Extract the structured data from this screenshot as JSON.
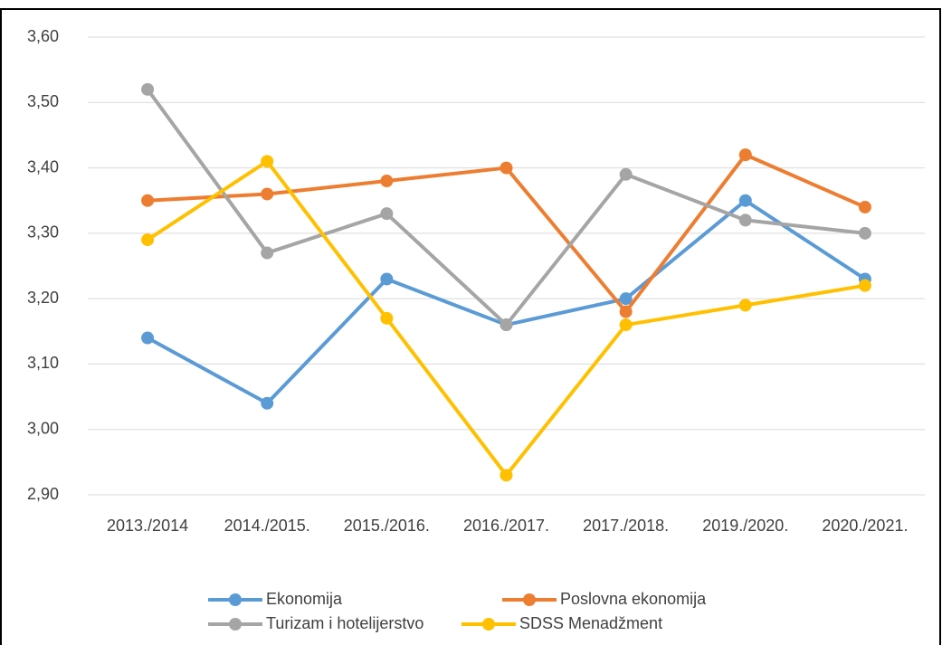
{
  "chart_data": {
    "type": "line",
    "categories": [
      "2013./2014",
      "2014./2015.",
      "2015./2016.",
      "2016./2017.",
      "2017./2018.",
      "2019./2020.",
      "2020./2021."
    ],
    "series": [
      {
        "name": "Ekonomija",
        "color": "#5b9bd5",
        "values": [
          3.14,
          3.04,
          3.23,
          3.16,
          3.2,
          3.35,
          3.23
        ]
      },
      {
        "name": "Poslovna ekonomija",
        "color": "#ed7d31",
        "values": [
          3.35,
          3.36,
          3.38,
          3.4,
          3.18,
          3.42,
          3.34
        ]
      },
      {
        "name": "Turizam i hotelijerstvo",
        "color": "#a5a5a5",
        "values": [
          3.52,
          3.27,
          3.33,
          3.16,
          3.39,
          3.32,
          3.3
        ]
      },
      {
        "name": "SDSS Menadžment",
        "color": "#ffc000",
        "values": [
          3.29,
          3.41,
          3.17,
          2.93,
          3.16,
          3.19,
          3.22
        ]
      }
    ],
    "ylim": [
      2.9,
      3.6
    ],
    "yticks": [
      {
        "value": 2.9,
        "label": "2,90"
      },
      {
        "value": 3.0,
        "label": "3,00"
      },
      {
        "value": 3.1,
        "label": "3,10"
      },
      {
        "value": 3.2,
        "label": "3,20"
      },
      {
        "value": 3.3,
        "label": "3,30"
      },
      {
        "value": 3.4,
        "label": "3,40"
      },
      {
        "value": 3.5,
        "label": "3,50"
      },
      {
        "value": 3.6,
        "label": "3,60"
      }
    ],
    "grid": true,
    "legend": "bottom"
  }
}
